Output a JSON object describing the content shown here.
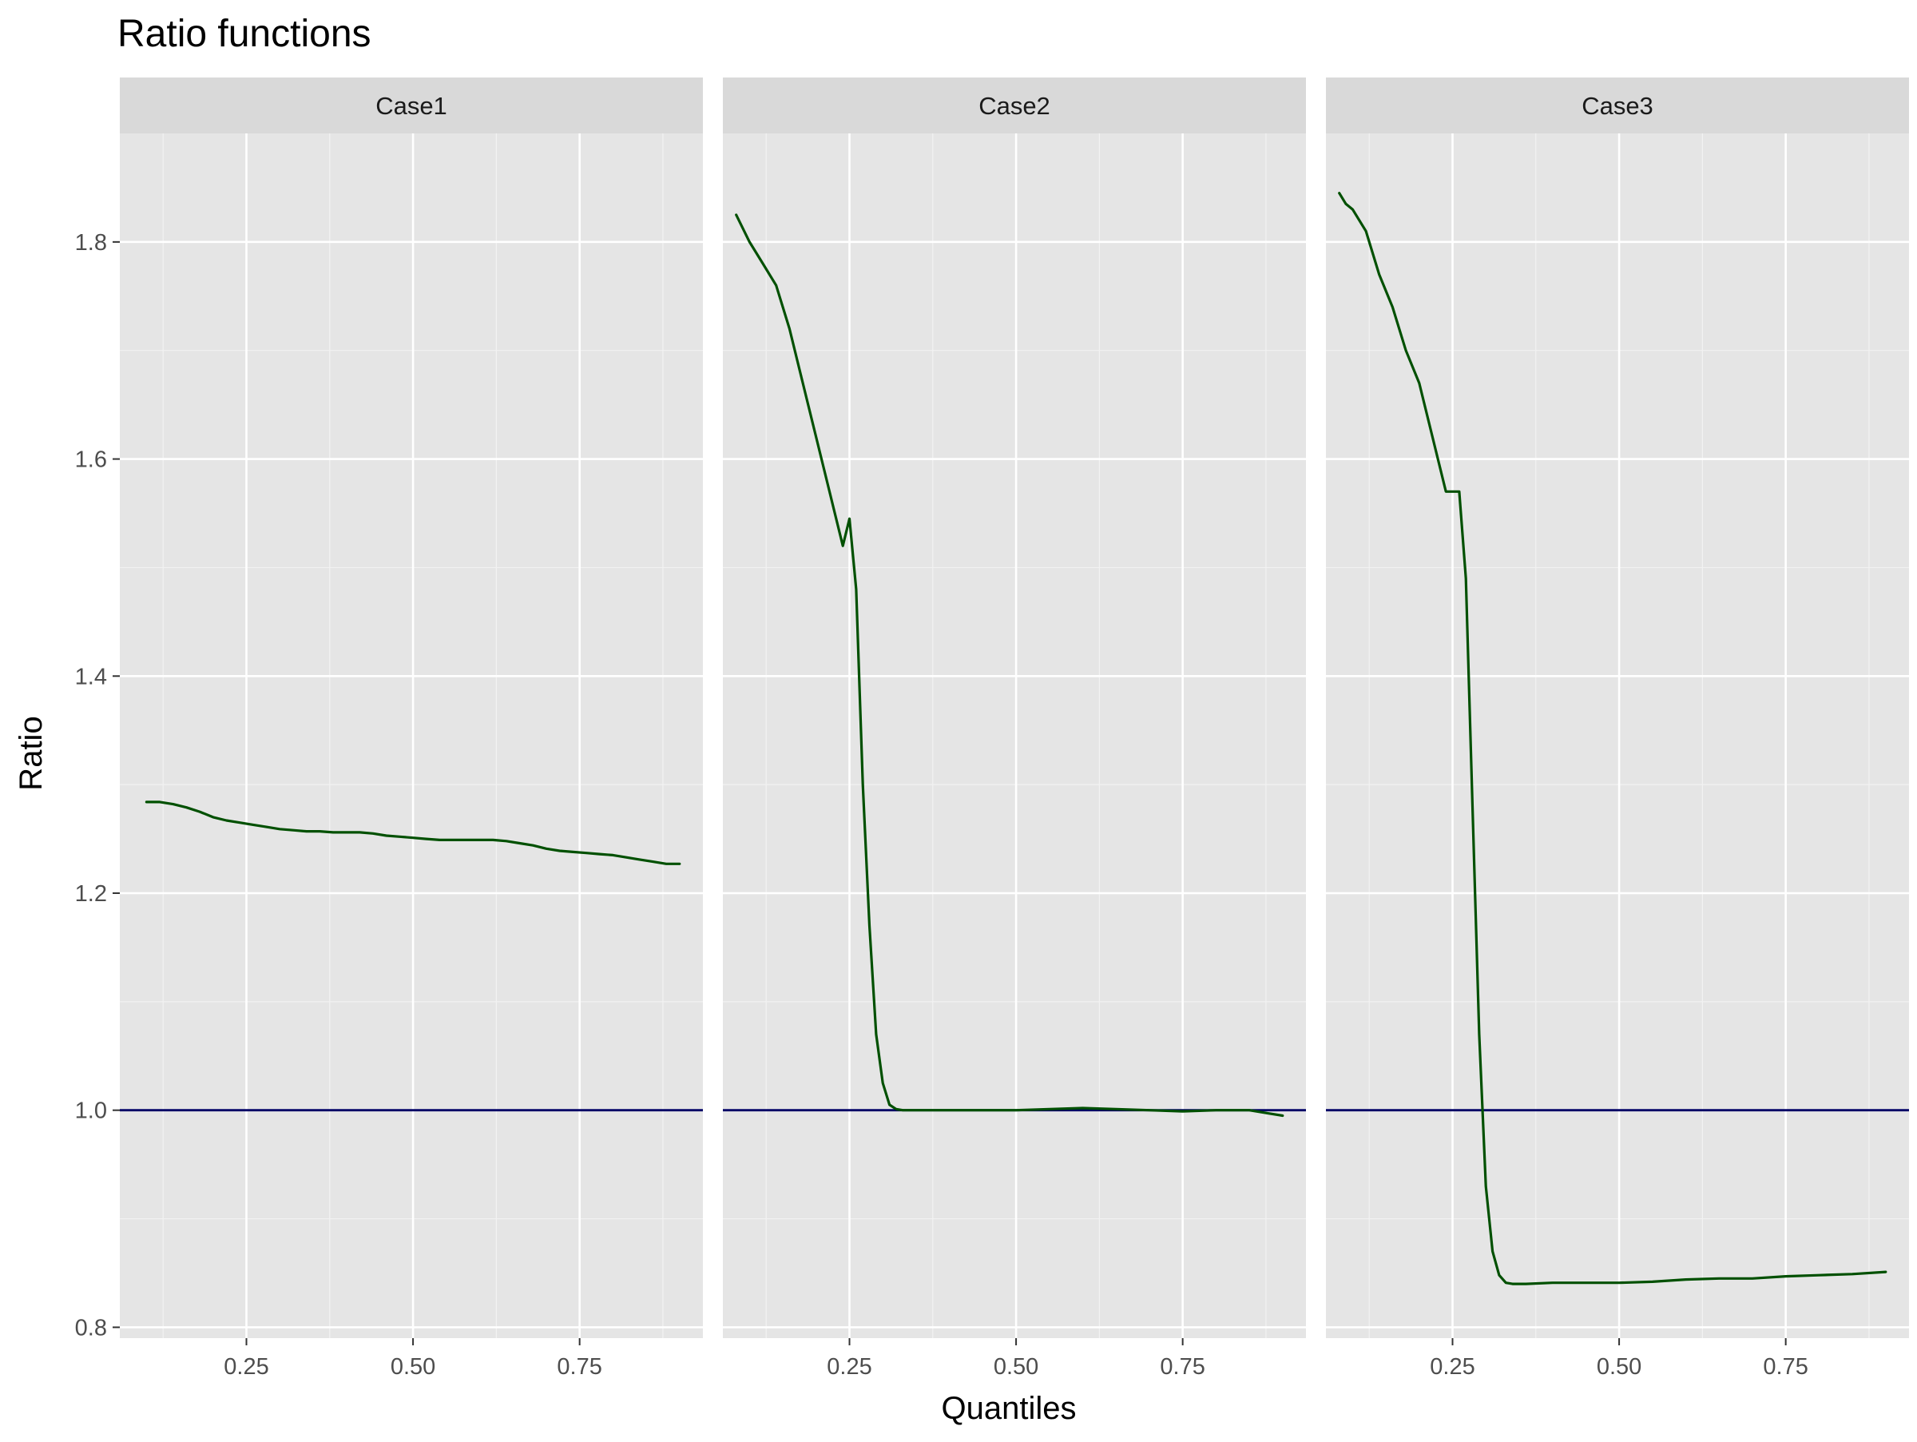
{
  "chart_data": {
    "type": "line",
    "title": "Ratio functions",
    "xlabel": "Quantiles",
    "ylabel": "Ratio",
    "xlim": [
      0.06,
      0.935
    ],
    "ylim": [
      0.79,
      1.9
    ],
    "x_ticks": [
      0.25,
      0.5,
      0.75
    ],
    "x_tick_labels": [
      "0.25",
      "0.50",
      "0.75"
    ],
    "x_minor_ticks": [
      0.125,
      0.375,
      0.625,
      0.875
    ],
    "y_ticks": [
      0.8,
      1.0,
      1.2,
      1.4,
      1.6,
      1.8
    ],
    "y_tick_labels": [
      "0.8",
      "1.0",
      "1.2",
      "1.4",
      "1.6",
      "1.8"
    ],
    "y_minor_ticks": [
      0.9,
      1.1,
      1.3,
      1.5,
      1.7
    ],
    "grid": true,
    "reference_line": {
      "y": 1.0,
      "color": "#000066"
    },
    "line_color": "#005000",
    "panel_background": "#e5e5e5",
    "strip_background": "#d9d9d9",
    "panels": [
      {
        "label": "Case1",
        "x": [
          0.1,
          0.12,
          0.14,
          0.16,
          0.18,
          0.2,
          0.22,
          0.24,
          0.26,
          0.28,
          0.3,
          0.32,
          0.34,
          0.36,
          0.38,
          0.4,
          0.42,
          0.44,
          0.46,
          0.48,
          0.5,
          0.52,
          0.54,
          0.56,
          0.58,
          0.6,
          0.62,
          0.64,
          0.66,
          0.68,
          0.7,
          0.72,
          0.74,
          0.76,
          0.78,
          0.8,
          0.82,
          0.84,
          0.86,
          0.88,
          0.9
        ],
        "y": [
          1.284,
          1.284,
          1.282,
          1.279,
          1.275,
          1.27,
          1.267,
          1.265,
          1.263,
          1.261,
          1.259,
          1.258,
          1.257,
          1.257,
          1.256,
          1.256,
          1.256,
          1.255,
          1.253,
          1.252,
          1.251,
          1.25,
          1.249,
          1.249,
          1.249,
          1.249,
          1.249,
          1.248,
          1.246,
          1.244,
          1.241,
          1.239,
          1.238,
          1.237,
          1.236,
          1.235,
          1.233,
          1.231,
          1.229,
          1.227,
          1.227
        ]
      },
      {
        "label": "Case2",
        "x": [
          0.08,
          0.1,
          0.12,
          0.14,
          0.16,
          0.18,
          0.2,
          0.22,
          0.24,
          0.25,
          0.26,
          0.27,
          0.28,
          0.29,
          0.3,
          0.31,
          0.32,
          0.33,
          0.34,
          0.36,
          0.4,
          0.45,
          0.5,
          0.55,
          0.6,
          0.65,
          0.7,
          0.75,
          0.8,
          0.85,
          0.88,
          0.9
        ],
        "y": [
          1.825,
          1.8,
          1.78,
          1.76,
          1.72,
          1.67,
          1.62,
          1.57,
          1.52,
          1.545,
          1.48,
          1.3,
          1.17,
          1.07,
          1.025,
          1.005,
          1.001,
          1.0,
          1.0,
          1.0,
          1.0,
          1.0,
          1.0,
          1.001,
          1.002,
          1.001,
          1.0,
          0.999,
          1.0,
          1.0,
          0.997,
          0.995
        ]
      },
      {
        "label": "Case3",
        "x": [
          0.08,
          0.09,
          0.1,
          0.12,
          0.14,
          0.16,
          0.18,
          0.2,
          0.22,
          0.24,
          0.26,
          0.27,
          0.28,
          0.29,
          0.3,
          0.31,
          0.32,
          0.33,
          0.34,
          0.36,
          0.4,
          0.45,
          0.5,
          0.55,
          0.6,
          0.65,
          0.7,
          0.75,
          0.8,
          0.85,
          0.9
        ],
        "y": [
          1.845,
          1.835,
          1.83,
          1.81,
          1.77,
          1.74,
          1.7,
          1.67,
          1.62,
          1.57,
          1.57,
          1.49,
          1.28,
          1.07,
          0.93,
          0.87,
          0.848,
          0.841,
          0.84,
          0.84,
          0.841,
          0.841,
          0.841,
          0.842,
          0.844,
          0.845,
          0.845,
          0.847,
          0.848,
          0.849,
          0.851
        ]
      }
    ]
  }
}
